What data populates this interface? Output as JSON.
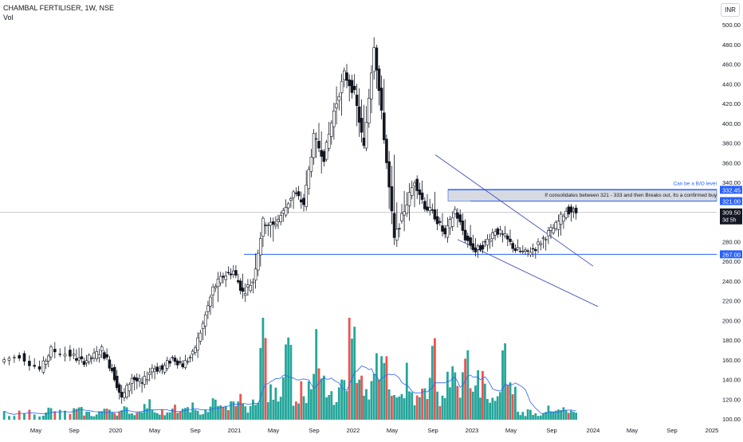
{
  "header": {
    "title": "CHAMBAL FERTILISER, 1W, NSE",
    "indicator": "Vol",
    "currency": "INR"
  },
  "colors": {
    "up": "#26a69a",
    "down": "#ef5350",
    "candle": "#131722",
    "level_line": "#2962ff",
    "channel_line": "#3f51b5",
    "volume_ma": "#2962ff",
    "last_price_line": "#b2b5be",
    "zone_fill": "#d1d4dc"
  },
  "chart_data": {
    "type": "candlestick",
    "symbol": "CHAMBAL FERTILISER",
    "interval": "1W",
    "exchange": "NSE",
    "x_tick_labels": [
      "May",
      "Sep",
      "2020",
      "May",
      "Sep",
      "2021",
      "May",
      "Sep",
      "2022",
      "May",
      "Sep",
      "2023",
      "May",
      "Sep",
      "2024",
      "May",
      "Sep",
      "2025"
    ],
    "y_tick_labels": [
      "500.00",
      "480.00",
      "460.00",
      "440.00",
      "420.00",
      "400.00",
      "380.00",
      "360.00",
      "340.00",
      "320.00",
      "300.00",
      "280.00",
      "260.00",
      "240.00",
      "220.00",
      "200.00",
      "180.00",
      "160.00",
      "140.00",
      "120.00",
      "100.00"
    ],
    "ylim": [
      100,
      510
    ],
    "price_series": [
      [
        "2019-03",
        160,
        165,
        150,
        158
      ],
      [
        "2019-05",
        158,
        170,
        155,
        165
      ],
      [
        "2019-07",
        165,
        170,
        145,
        150
      ],
      [
        "2019-08",
        150,
        175,
        148,
        170
      ],
      [
        "2019-10",
        170,
        190,
        160,
        165
      ],
      [
        "2019-11",
        165,
        175,
        152,
        158
      ],
      [
        "2019-12",
        158,
        168,
        150,
        162
      ],
      [
        "2020-01",
        162,
        180,
        155,
        170
      ],
      [
        "2020-02",
        170,
        172,
        145,
        150
      ],
      [
        "2020-03",
        150,
        155,
        108,
        120
      ],
      [
        "2020-04",
        120,
        150,
        112,
        142
      ],
      [
        "2020-05",
        142,
        148,
        128,
        135
      ],
      [
        "2020-06",
        135,
        158,
        130,
        152
      ],
      [
        "2020-07",
        152,
        162,
        145,
        150
      ],
      [
        "2020-08",
        150,
        168,
        148,
        162
      ],
      [
        "2020-09",
        162,
        166,
        150,
        155
      ],
      [
        "2020-10",
        155,
        172,
        152,
        165
      ],
      [
        "2020-11",
        165,
        200,
        163,
        196
      ],
      [
        "2020-12",
        196,
        240,
        192,
        232
      ],
      [
        "2021-01",
        232,
        262,
        225,
        245
      ],
      [
        "2021-02",
        245,
        270,
        235,
        250
      ],
      [
        "2021-03",
        250,
        256,
        212,
        228
      ],
      [
        "2021-04",
        228,
        250,
        214,
        240
      ],
      [
        "2021-05",
        240,
        310,
        238,
        300
      ],
      [
        "2021-06",
        300,
        318,
        282,
        296
      ],
      [
        "2021-07",
        296,
        320,
        290,
        310
      ],
      [
        "2021-08",
        310,
        338,
        300,
        330
      ],
      [
        "2021-09",
        330,
        342,
        305,
        318
      ],
      [
        "2021-10",
        318,
        400,
        316,
        386
      ],
      [
        "2021-11",
        386,
        438,
        350,
        365
      ],
      [
        "2021-12",
        365,
        420,
        352,
        412
      ],
      [
        "2022-01",
        412,
        470,
        395,
        450
      ],
      [
        "2022-02",
        450,
        476,
        402,
        430
      ],
      [
        "2022-03",
        430,
        460,
        352,
        375
      ],
      [
        "2022-04",
        375,
        512,
        372,
        480
      ],
      [
        "2022-05",
        480,
        490,
        372,
        386
      ],
      [
        "2022-06",
        386,
        392,
        262,
        282
      ],
      [
        "2022-07",
        282,
        322,
        268,
        312
      ],
      [
        "2022-08",
        312,
        356,
        305,
        342
      ],
      [
        "2022-09",
        342,
        368,
        302,
        316
      ],
      [
        "2022-10",
        316,
        334,
        290,
        306
      ],
      [
        "2022-11",
        306,
        326,
        278,
        286
      ],
      [
        "2022-12",
        286,
        322,
        274,
        312
      ],
      [
        "2023-01",
        312,
        322,
        278,
        284
      ],
      [
        "2023-02",
        284,
        290,
        262,
        270
      ],
      [
        "2023-03",
        270,
        286,
        250,
        278
      ],
      [
        "2023-04",
        278,
        298,
        268,
        292
      ],
      [
        "2023-05",
        292,
        306,
        274,
        284
      ],
      [
        "2023-06",
        284,
        292,
        266,
        272
      ],
      [
        "2023-07",
        272,
        282,
        262,
        268
      ],
      [
        "2023-08",
        268,
        280,
        252,
        274
      ],
      [
        "2023-09",
        274,
        292,
        266,
        286
      ],
      [
        "2023-10",
        286,
        300,
        268,
        296
      ],
      [
        "2023-11",
        296,
        318,
        286,
        312
      ],
      [
        "2023-12",
        312,
        316,
        300,
        309.5
      ]
    ],
    "volume": {
      "values_rel": [
        0.08,
        0.1,
        0.07,
        0.12,
        0.09,
        0.11,
        0.08,
        0.06,
        0.1,
        0.14,
        0.09,
        0.12,
        0.08,
        0.15,
        0.18,
        0.11,
        0.07,
        0.13,
        0.1,
        0.16,
        0.09,
        0.12,
        0.22,
        0.14,
        0.18,
        0.25,
        0.12,
        0.2,
        1.0,
        0.32,
        0.4,
        0.85,
        0.28,
        0.36,
        0.55,
        0.78,
        0.42,
        0.3,
        0.48,
        0.92,
        0.38,
        0.33,
        0.58,
        0.66,
        0.3,
        0.44,
        0.52,
        0.24,
        0.38,
        0.72,
        0.3,
        0.55,
        0.42,
        0.6,
        0.35,
        0.48,
        0.2,
        0.3,
        0.68,
        0.36
      ],
      "up_pattern": [
        0,
        1,
        1,
        0,
        1,
        0,
        1,
        1,
        0,
        1,
        0,
        1
      ]
    },
    "horizontal_levels": [
      {
        "price": 332.45,
        "label": "332.45"
      },
      {
        "price": 321.0,
        "label": "321.00"
      },
      {
        "price": 267.0,
        "label": "267.00"
      }
    ],
    "last_price": {
      "price": 309.5,
      "label": "309.50",
      "countdown": "3d 5h"
    },
    "zone": {
      "low": 321.0,
      "high": 333.0
    },
    "annotations": [
      {
        "text": "Can be a B/O level"
      },
      {
        "text": "If consolidates between 321 - 333 and then Breaks out, Its a confirmed buy"
      }
    ],
    "trendlines": [
      {
        "from": [
          "2022-09",
          368
        ],
        "to": [
          "2024-01",
          258
        ]
      },
      {
        "from": [
          "2022-11",
          282
        ],
        "to": [
          "2024-01",
          215
        ]
      }
    ]
  }
}
